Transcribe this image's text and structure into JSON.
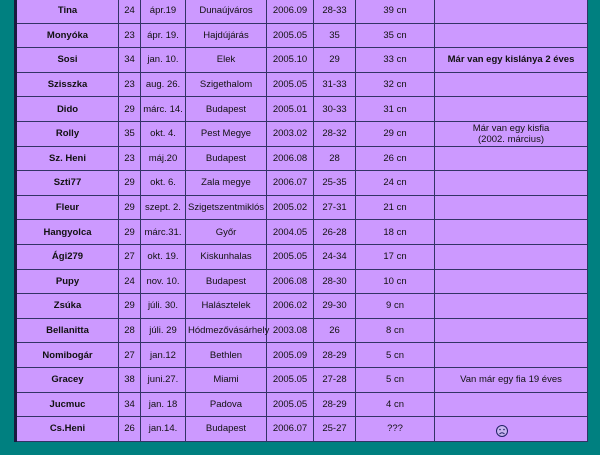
{
  "table": {
    "rows": [
      [
        "Tina",
        "24",
        "ápr.19",
        "Dunaújváros",
        "2006.09",
        "28-33",
        "39 cn"
      ],
      [
        "Monyóka",
        "23",
        "ápr. 19.",
        "Hajdújárás",
        "2005.05",
        "35",
        "35 cn"
      ],
      [
        "Sosi",
        "34",
        "jan. 10.",
        "Elek",
        "2005.10",
        "29",
        "33 cn",
        [
          "Már van egy kislánya 2 éves"
        ]
      ],
      [
        "Szisszka",
        "23",
        "aug. 26.",
        "Szigethalom",
        "2005.05",
        "31-33",
        "32 cn"
      ],
      [
        "Dido",
        "29",
        "márc. 14.",
        "Budapest",
        "2005.01",
        "30-33",
        "31 cn"
      ],
      [
        "Rolly",
        "35",
        "okt. 4.",
        "Pest Megye",
        "2003.02",
        "28-32",
        "29 cn",
        [
          "Már van egy kisfia",
          "(2002. március)"
        ]
      ],
      [
        "Sz. Heni",
        "23",
        "máj.20",
        "Budapest",
        "2006.08",
        "28",
        "26 cn"
      ],
      [
        "Szti77",
        "29",
        "okt. 6.",
        "Zala megye",
        "2006.07",
        "25-35",
        "24 cn"
      ],
      [
        "Fleur",
        "29",
        "szept. 2.",
        "Szigetszentmiklós",
        "2005.02",
        "27-31",
        "21 cn"
      ],
      [
        "Hangyolca",
        "29",
        "márc.31.",
        "Győr",
        "2004.05",
        "26-28",
        "18 cn"
      ],
      [
        "Ági279",
        "27",
        "okt. 19.",
        "Kiskunhalas",
        "2005.05",
        "24-34",
        "17 cn"
      ],
      [
        "Pupy",
        "24",
        "nov. 10.",
        "Budapest",
        "2006.08",
        "28-30",
        "10 cn"
      ],
      [
        "Zsúka",
        "29",
        "júli. 30.",
        "Halásztelek",
        "2006.02",
        "29-30",
        "9 cn"
      ],
      [
        "Bellanitta",
        "28",
        "júli. 29",
        "Hódmezővásárhely",
        "2003.08",
        "26",
        "8 cn"
      ],
      [
        "Nomibogár",
        "27",
        "jan.12",
        "Bethlen",
        "2005.09",
        "28-29",
        "5 cn"
      ],
      [
        "Gracey",
        "38",
        "juni.27.",
        "Miami",
        "2005.05",
        "27-28",
        "5 cn",
        [
          "Van már egy fia 19 éves"
        ]
      ],
      [
        "Jucmuc",
        "34",
        "jan. 18",
        "Padova",
        "2005.05",
        "28-29",
        "4 cn"
      ],
      [
        "Cs.Heni",
        "26",
        "jan.14.",
        "Budapest",
        "2006.07",
        "25-27",
        "???"
      ]
    ]
  }
}
